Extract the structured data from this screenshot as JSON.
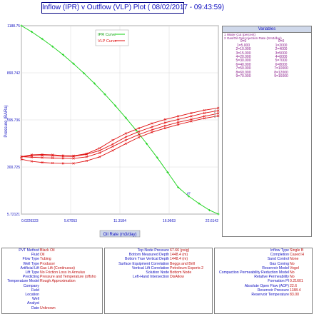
{
  "title": "Inflow (IPR) v Outflow (VLP) Plot ( 08/02/2017 - 09:43:59)",
  "colors": {
    "ipr": "#10d010",
    "vlp": "#e01010",
    "text": "#1010c0",
    "value_text": "#c01010",
    "panel_header": "#cfd8ea",
    "variable_text": "#8a1a8a"
  },
  "chart_data": {
    "type": "line",
    "xlabel": "Oil Rate (m3/day)",
    "ylabel": "Pressure (BARa)",
    "xlim": [
      0.0226323,
      22.6142
    ],
    "ylim": [
      5.72121,
      1188.75
    ],
    "xticks": [
      "0.0226323",
      "5.67053",
      "11.3184",
      "16.9663",
      "22.6142"
    ],
    "yticks": [
      "5.72121",
      "300.725",
      "595.736",
      "890.742",
      "1188.75"
    ],
    "legend_position": "top-left",
    "series": [
      {
        "name": "IPR Curve",
        "x": [
          0.02,
          1.2,
          2.4,
          3.6,
          4.8,
          6.0,
          7.2,
          8.4,
          9.6,
          10.8,
          12.0,
          13.2,
          14.4,
          15.6,
          16.8,
          18.0,
          19.2,
          20.4,
          21.6,
          22.61
        ],
        "y": [
          1188.75,
          1150,
          1106,
          1058,
          1006,
          950,
          890,
          826,
          758,
          686,
          610,
          531,
          447,
          360,
          268,
          174,
          118,
          72,
          30,
          5.7
        ]
      },
      {
        "name": "VLP Curve",
        "label": "1",
        "x": [
          0.02,
          1.2,
          2.4,
          3.6,
          4.8,
          6.0,
          7.5,
          9.0,
          10.5,
          12.0,
          13.5,
          15.0,
          16.5,
          18.0,
          19.5,
          21.0,
          22.6
        ],
        "y": [
          366,
          378,
          380,
          378,
          373,
          372,
          385,
          420,
          470,
          512,
          545,
          575,
          600,
          620,
          640,
          658,
          672
        ]
      },
      {
        "name": "",
        "label": "2",
        "x": [
          0.02,
          1.2,
          2.4,
          3.6,
          4.8,
          6.0,
          7.5,
          9.0,
          10.5,
          12.0,
          13.5,
          15.0,
          16.5,
          18.0,
          19.5,
          21.0,
          22.6
        ],
        "y": [
          366,
          372,
          374,
          372,
          369,
          368,
          381,
          405,
          445,
          490,
          524,
          553,
          580,
          600,
          620,
          640,
          655
        ]
      },
      {
        "name": "",
        "label": "3",
        "x": [
          0.02,
          1.2,
          2.4,
          3.6,
          4.8,
          6.0,
          7.5,
          9.0,
          10.5,
          12.0,
          13.5,
          15.0,
          16.5,
          18.0,
          19.5,
          21.0,
          22.6
        ],
        "y": [
          366,
          363,
          360,
          358,
          356,
          355,
          365,
          390,
          430,
          470,
          505,
          535,
          560,
          582,
          600,
          620,
          638
        ]
      },
      {
        "name": "",
        "label": "4",
        "x": [
          0.02,
          1.2,
          2.4,
          3.6,
          4.8,
          6.0,
          7.5,
          9.0,
          10.5,
          12.0,
          13.5,
          15.0,
          16.5,
          18.0,
          19.5,
          21.0,
          22.6
        ],
        "y": [
          350,
          337,
          330,
          326,
          324,
          324,
          340,
          365,
          405,
          448,
          488,
          520,
          545,
          568,
          588,
          607,
          622
        ]
      }
    ],
    "solution_point": {
      "label": "d7",
      "x": 19.0,
      "y": 130
    }
  },
  "variables": {
    "title": "Variables",
    "header1": "1 Water Cut (percent)",
    "header2": "2 Gas/Oil Gas Injection Rate (Sm3/day)",
    "col_heads": [
      "0=0",
      "0=0"
    ],
    "rows": [
      [
        "1=5.000",
        "1=2000"
      ],
      [
        "2=10.000",
        "2=4000"
      ],
      [
        "3=15.000",
        "3=5000"
      ],
      [
        "4=20.000",
        "4=6000"
      ],
      [
        "5=30.000",
        "5=7000"
      ],
      [
        "6=40.000",
        "6=8000"
      ],
      [
        "7=50.000",
        "7=10000"
      ],
      [
        "8=60.000",
        "8=12000"
      ],
      [
        "9=70.000",
        "9=16000"
      ]
    ]
  },
  "bottom": {
    "left": [
      {
        "k": "PVT Method",
        "v": "Black Oil"
      },
      {
        "k": "Fluid",
        "v": "Oil"
      },
      {
        "k": "Flow Type",
        "v": "Tubing"
      },
      {
        "k": "Well Type",
        "v": "Producer"
      },
      {
        "k": "Artificial Lift",
        "v": "Gas Lift (Continuous)"
      },
      {
        "k": "Lift Type",
        "v": "No Friction Loss In Annulus"
      },
      {
        "k": "Predicting",
        "v": "Pressure and Temperature (offsho"
      },
      {
        "k": "Temperature Model",
        "v": "Rough Approximation"
      },
      {
        "k": "Company",
        "v": ""
      },
      {
        "k": "Field",
        "v": ""
      },
      {
        "k": "Location",
        "v": ""
      },
      {
        "k": "Well",
        "v": ""
      },
      {
        "k": "Analyst",
        "v": ""
      },
      {
        "k": "Date",
        "v": "Unknown"
      }
    ],
    "middle": [
      {
        "k": "Top Node Pressure",
        "v": "67.66 (psig)"
      },
      {
        "k": "Bottom Measured Depth",
        "v": "1448.4 (m)"
      },
      {
        "k": "Bottom True Vertical Depth",
        "v": "1448.4 (m)"
      },
      {
        "k": "Surface Equipment Correlation",
        "v": "Beggs and Brill"
      },
      {
        "k": "Vertical Lift Correlation",
        "v": "Petroleum Experts 2"
      },
      {
        "k": "",
        "v": ""
      },
      {
        "k": "Solution Node",
        "v": "Bottom Node"
      },
      {
        "k": "Left-Hand Intersection",
        "v": "DisAllow"
      }
    ],
    "right": [
      {
        "k": "Inflow Type",
        "v": "Single B"
      },
      {
        "k": "Completion",
        "v": "Cased H"
      },
      {
        "k": "Sand Control",
        "v": "None"
      },
      {
        "k": "Gas Coning",
        "v": "No"
      },
      {
        "k": "",
        "v": ""
      },
      {
        "k": "Reservoir Model",
        "v": "Vogel"
      },
      {
        "k": "",
        "v": ""
      },
      {
        "k": "Compaction Permeability Reduction Model",
        "v": "No"
      },
      {
        "k": "Relative Permeability",
        "v": "No"
      },
      {
        "k": "Formation PI",
        "v": "0.21601"
      },
      {
        "k": "Absolute Open Flow (AOF)",
        "v": "22.6"
      },
      {
        "k": "Reservoir Pressure",
        "v": "1188.4"
      },
      {
        "k": "Reservoir Temperature",
        "v": "83.00"
      }
    ]
  }
}
